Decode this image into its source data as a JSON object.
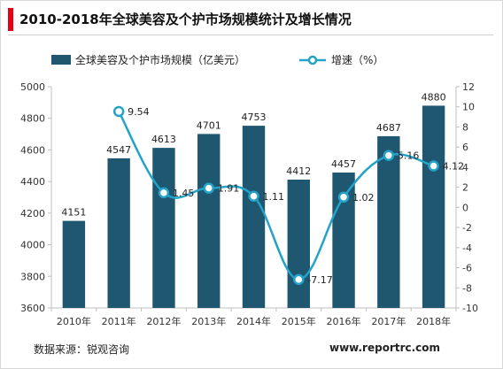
{
  "title": "2010-2018年全球美容及个护市场规模统计及增长情况",
  "legend": {
    "bar_label": "全球美容及个护市场规模（亿美元）",
    "line_label": "增速（%）"
  },
  "source": "数据来源：锐观咨询",
  "website": "www.reportrc.com",
  "colors": {
    "bar": "#1f5670",
    "line": "#24a3c9",
    "title_accent": "#e60012"
  },
  "chart_data": {
    "type": "bar",
    "categories": [
      "2010年",
      "2011年",
      "2012年",
      "2013年",
      "2014年",
      "2015年",
      "2016年",
      "2017年",
      "2018年"
    ],
    "series": [
      {
        "name": "全球美容及个护市场规模（亿美元）",
        "type": "bar",
        "axis": "left",
        "values": [
          4151,
          4547,
          4613,
          4701,
          4753,
          4412,
          4457,
          4687,
          4880
        ]
      },
      {
        "name": "增速（%）",
        "type": "line",
        "axis": "right",
        "values": [
          null,
          9.54,
          1.45,
          1.91,
          1.11,
          -7.17,
          1.02,
          5.16,
          4.12
        ]
      }
    ],
    "left_axis": {
      "min": 3600,
      "max": 5000,
      "step": 200,
      "ticks": [
        "3600",
        "3800",
        "4000",
        "4200",
        "4400",
        "4600",
        "4800",
        "5000"
      ]
    },
    "right_axis": {
      "min": -10,
      "max": 12,
      "step": 2,
      "ticks": [
        "-10",
        "-8",
        "-6",
        "-4",
        "-2",
        "0",
        "2",
        "4",
        "6",
        "8",
        "10",
        "12"
      ]
    },
    "bar_labels": [
      "4151",
      "4547",
      "4613",
      "4701",
      "4753",
      "4412",
      "4457",
      "4687",
      "4880"
    ],
    "line_labels": [
      "",
      "9.54",
      "1.45",
      "1.91",
      "1.11",
      "-7.17",
      "1.02",
      "5.16",
      "4.12"
    ],
    "grid": false,
    "legend_position": "top"
  }
}
